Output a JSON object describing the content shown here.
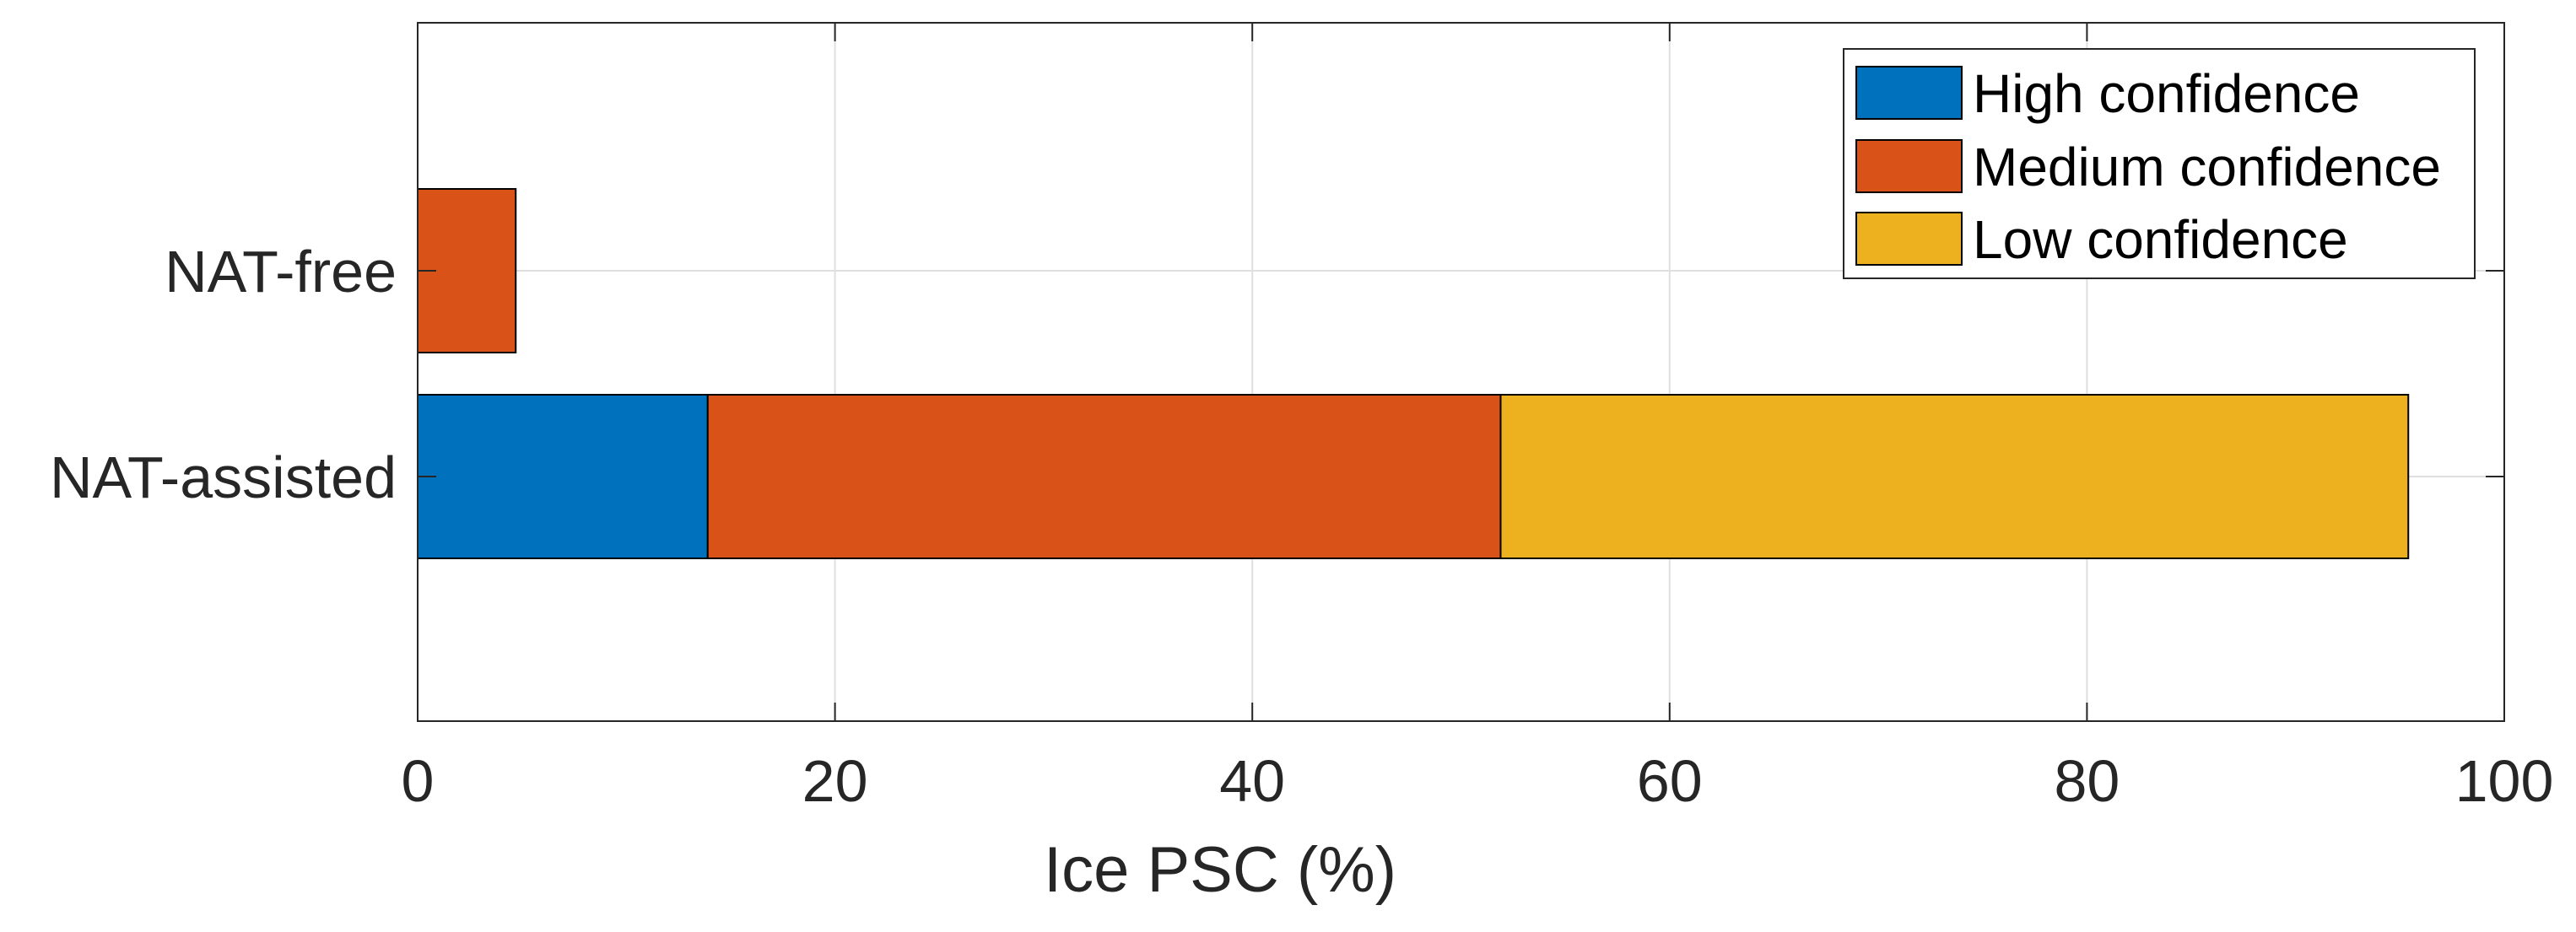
{
  "chart_data": {
    "type": "bar",
    "orientation": "horizontal",
    "stacked": true,
    "categories": [
      "NAT-assisted",
      "NAT-free"
    ],
    "series": [
      {
        "name": "High confidence",
        "color": "#0072BD",
        "values": [
          13.9,
          0
        ]
      },
      {
        "name": "Medium confidence",
        "color": "#D95319",
        "values": [
          38.0,
          4.7
        ]
      },
      {
        "name": "Low confidence",
        "color": "#EDB120",
        "values": [
          43.5,
          0
        ]
      }
    ],
    "xlabel": "Ice PSC (%)",
    "ylabel": "",
    "xlim": [
      0,
      100
    ],
    "xticks": [
      "0",
      "20",
      "40",
      "60",
      "80",
      "100"
    ],
    "grid": true,
    "legend_position": "top-right"
  }
}
